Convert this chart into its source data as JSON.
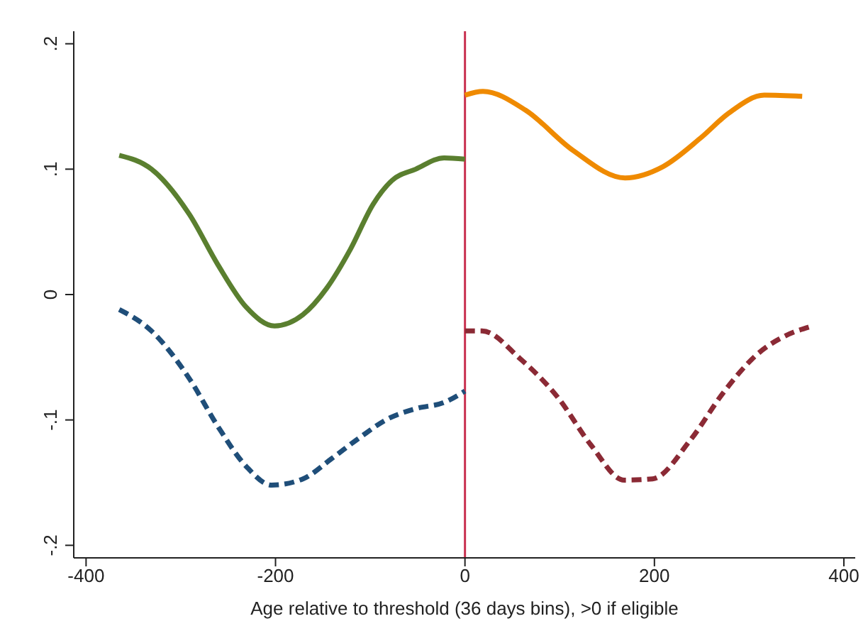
{
  "chart_data": {
    "type": "line",
    "xlabel": "Age relative to threshold (36 days bins), >0 if eligible",
    "xlim": [
      -413,
      412
    ],
    "xticks": [
      -400,
      -200,
      0,
      200,
      400
    ],
    "ylim": [
      -0.21,
      0.21
    ],
    "yticks": [
      {
        "value": 0.2,
        "label": ".2"
      },
      {
        "value": 0.1,
        "label": ".1"
      },
      {
        "value": 0,
        "label": "0"
      },
      {
        "value": -0.1,
        "label": "-.1"
      },
      {
        "value": -0.2,
        "label": "-.2"
      }
    ],
    "grid": false,
    "legend": false,
    "ref_lines": [
      {
        "axis": "x",
        "value": 0,
        "color": "#c8304f"
      }
    ],
    "series": [
      {
        "color": "#5a7f2f",
        "line_style": "solid",
        "x": [
          -365,
          -331,
          -291,
          -261,
          -231,
          -201,
          -171,
          -146,
          -121,
          -97,
          -77,
          -52,
          -22,
          0
        ],
        "values": [
          0.111,
          0.1,
          0.064,
          0.024,
          -0.01,
          -0.025,
          -0.016,
          0.005,
          0.036,
          0.072,
          0.091,
          0.1,
          0.109,
          0.108
        ]
      },
      {
        "color": "#1f4e79",
        "line_style": "dashed",
        "x": [
          -365,
          -331,
          -291,
          -261,
          -231,
          -204,
          -171,
          -141,
          -111,
          -81,
          -52,
          -22,
          0
        ],
        "values": [
          -0.012,
          -0.029,
          -0.067,
          -0.105,
          -0.137,
          -0.152,
          -0.147,
          -0.131,
          -0.114,
          -0.099,
          -0.091,
          -0.086,
          -0.077
        ]
      },
      {
        "color": "#ef8a00",
        "line_style": "solid",
        "x": [
          0,
          19,
          64,
          114,
          169,
          209,
          249,
          279,
          316,
          356
        ],
        "values": [
          0.159,
          0.162,
          0.147,
          0.115,
          0.093,
          0.102,
          0.125,
          0.145,
          0.159,
          0.158
        ]
      },
      {
        "color": "#8b2a35",
        "line_style": "dashed",
        "x": [
          0,
          18,
          58,
          98,
          133,
          168,
          198,
          238,
          273,
          308,
          338,
          363
        ],
        "values": [
          -0.029,
          -0.029,
          -0.051,
          -0.082,
          -0.12,
          -0.148,
          -0.147,
          -0.116,
          -0.078,
          -0.048,
          -0.033,
          -0.026
        ]
      }
    ]
  }
}
